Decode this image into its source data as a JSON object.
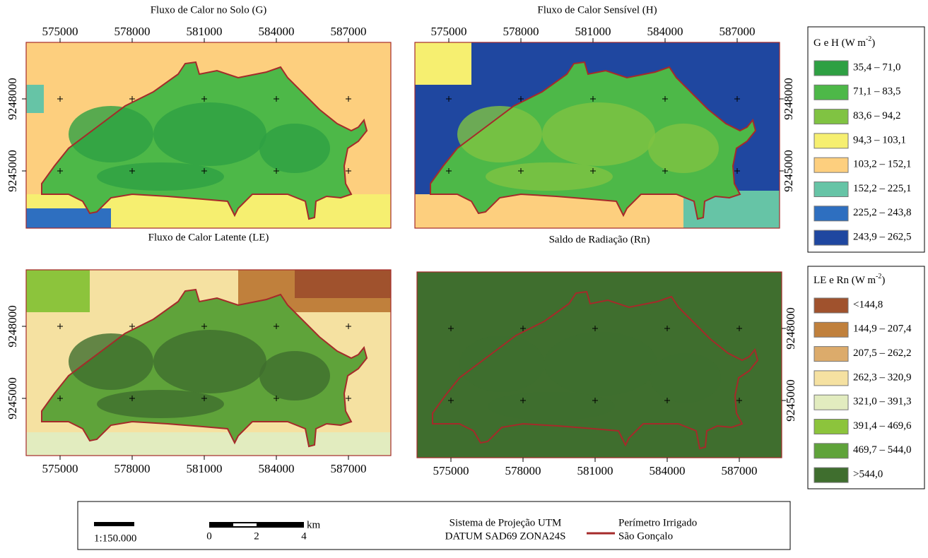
{
  "panels": [
    {
      "title": "Fluxo de Calor no Solo (G)"
    },
    {
      "title": "Fluxo de Calor Sensível (H)"
    },
    {
      "title": "Fluxo de Calor Latente (LE)"
    },
    {
      "title": "Saldo de Radiação (Rn)"
    }
  ],
  "eastings": [
    575000,
    578000,
    581000,
    584000,
    587000
  ],
  "northings": [
    9248000,
    9245000
  ],
  "legends": [
    {
      "title": "G e H (W m",
      "title_sup": "-2",
      "title_end": ")",
      "classes": [
        {
          "label": "35,4 – 71,0",
          "color": "#2ea043"
        },
        {
          "label": "71,1 – 83,5",
          "color": "#4db848"
        },
        {
          "label": "83,6 – 94,2",
          "color": "#80c342"
        },
        {
          "label": "94,3 – 103,1",
          "color": "#f6ef70"
        },
        {
          "label": "103,2 – 152,1",
          "color": "#fdcf7e"
        },
        {
          "label": "152,2 – 225,1",
          "color": "#66c4a6"
        },
        {
          "label": "225,2 – 243,8",
          "color": "#2e6fc0"
        },
        {
          "label": "243,9 – 262,5",
          "color": "#1f47a0"
        }
      ]
    },
    {
      "title": "LE e Rn (W m",
      "title_sup": "-2",
      "title_end": ")",
      "classes": [
        {
          "label": "<144,8",
          "color": "#a0522d"
        },
        {
          "label": "144,9 – 207,4",
          "color": "#c0803c"
        },
        {
          "label": "207,5 – 262,2",
          "color": "#dcab6b"
        },
        {
          "label": "262,3 – 320,9",
          "color": "#f5e1a1"
        },
        {
          "label": "321,0 – 391,3",
          "color": "#e2ecbf"
        },
        {
          "label": "391,4 – 469,6",
          "color": "#8cc43c"
        },
        {
          "label": "469,7 – 544,0",
          "color": "#5fa33a"
        },
        {
          "label": ">544,0",
          "color": "#3f6e2e"
        }
      ]
    }
  ],
  "scale": {
    "ratio": "1:150.000",
    "unit": "km",
    "ticks": [
      0,
      2,
      4
    ]
  },
  "projection": [
    "Sistema de Projeção UTM",
    "DATUM SAD69 ZONA24S"
  ],
  "perimeter": {
    "label": [
      "Perímetro Irrigado",
      "São Gonçalo"
    ],
    "color": "#a52a2a"
  }
}
